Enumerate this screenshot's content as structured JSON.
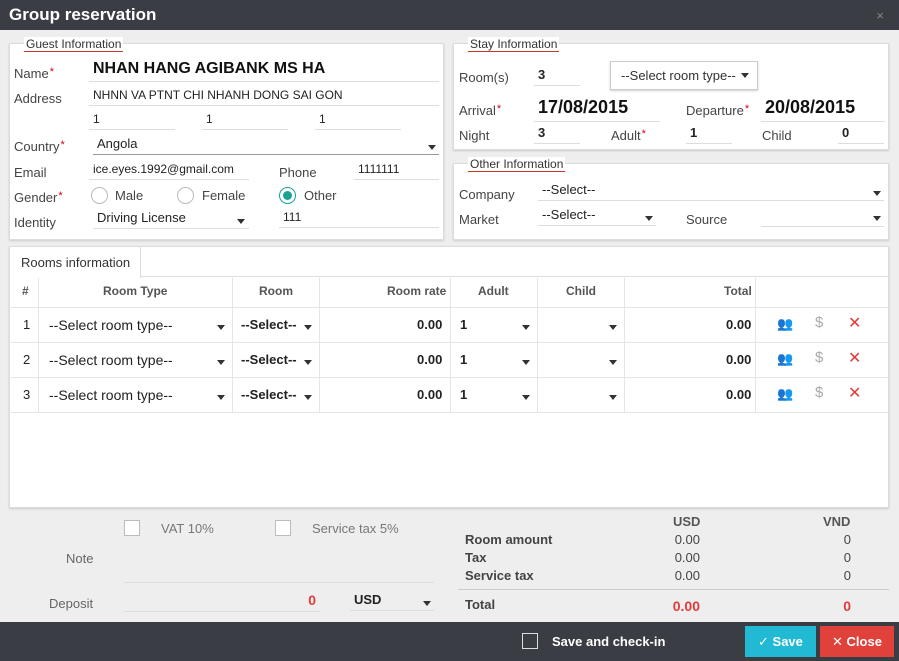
{
  "dialog": {
    "title": "Group reservation",
    "close_icon": "×"
  },
  "guest": {
    "legend": "Guest Information",
    "name_label": "Name",
    "name_value": "NHAN HANG AGIBANK MS HA",
    "address_label": "Address",
    "address_value": "NHNN VA PTNT CHI NHANH DONG SAI GON",
    "address_line2": [
      "1",
      "1",
      "1"
    ],
    "country_label": "Country",
    "country_value": "Angola",
    "email_label": "Email",
    "email_value": "ice.eyes.1992@gmail.com",
    "phone_label": "Phone",
    "phone_value": "1111111",
    "gender_label": "Gender",
    "gender_options": [
      "Male",
      "Female",
      "Other"
    ],
    "gender_selected": "Other",
    "identity_label": "Identity",
    "identity_value": "Driving License",
    "identity_number": "111"
  },
  "stay": {
    "legend": "Stay Information",
    "rooms_label": "Room(s)",
    "rooms_value": "3",
    "room_type_button": "--Select room type--",
    "arrival_label": "Arrival",
    "arrival_value": "17/08/2015",
    "departure_label": "Departure",
    "departure_value": "20/08/2015",
    "night_label": "Night",
    "night_value": "3",
    "adult_label": "Adult",
    "adult_value": "1",
    "child_label": "Child",
    "child_value": "0"
  },
  "other": {
    "legend": "Other Information",
    "company_label": "Company",
    "company_value": "--Select--",
    "market_label": "Market",
    "market_value": "--Select--",
    "source_label": "Source",
    "source_value": ""
  },
  "rooms": {
    "tab_label": "Rooms information",
    "headers": [
      "#",
      "Room Type",
      "Room",
      "Room rate",
      "Adult",
      "Child",
      "Total"
    ],
    "rows": [
      {
        "num": "1",
        "room_type": "--Select room type--",
        "room": "--Select--",
        "rate": "0.00",
        "adult": "1",
        "child": "",
        "total": "0.00"
      },
      {
        "num": "2",
        "room_type": "--Select room type--",
        "room": "--Select--",
        "rate": "0.00",
        "adult": "1",
        "child": "",
        "total": "0.00"
      },
      {
        "num": "3",
        "room_type": "--Select room type--",
        "room": "--Select--",
        "rate": "0.00",
        "adult": "1",
        "child": "",
        "total": "0.00"
      }
    ]
  },
  "billing": {
    "vat_label": "VAT 10%",
    "service_tax_label": "Service tax 5%",
    "note_label": "Note",
    "deposit_label": "Deposit",
    "deposit_value": "0",
    "currency": "USD",
    "col_usd": "USD",
    "col_vnd": "VND",
    "lines": [
      {
        "label": "Room amount",
        "usd": "0.00",
        "vnd": "0"
      },
      {
        "label": "Tax",
        "usd": "0.00",
        "vnd": "0"
      },
      {
        "label": "Service tax",
        "usd": "0.00",
        "vnd": "0"
      }
    ],
    "total_label": "Total",
    "total_usd": "0.00",
    "total_vnd": "0"
  },
  "footer": {
    "checkin_label": "Save and check-in",
    "save_label": "Save",
    "close_label": "Close"
  },
  "colors": {
    "accent": "#21b9d4",
    "danger": "#e0413b",
    "radio_on": "#1aa394",
    "titlebar": "#3a3d44"
  }
}
